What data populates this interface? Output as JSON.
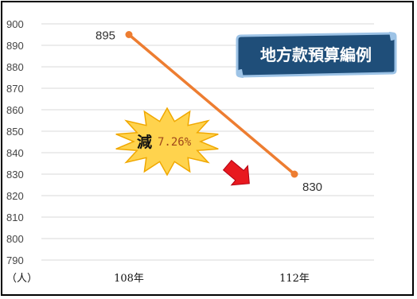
{
  "chart_data": {
    "type": "line",
    "categories": [
      "108年",
      "112年"
    ],
    "series": [
      {
        "values": [
          895,
          830
        ],
        "color": "#ed7d31"
      }
    ],
    "ylim": [
      790,
      900
    ],
    "yticks": [
      790,
      800,
      810,
      820,
      830,
      840,
      850,
      860,
      870,
      880,
      890,
      900
    ],
    "y_unit_label": "（人）",
    "data_labels": [
      "895",
      "830"
    ],
    "grid": true,
    "title_banner": "地方款預算編例",
    "annotation": {
      "main": "減",
      "percent": "7.26%"
    }
  },
  "colors": {
    "banner_fill": "#1f4e79",
    "banner_border": "#9dc3e6",
    "burst_fill": "#ffd34d",
    "arrow_fill": "#e8191f",
    "grid": "#d9d9d9"
  }
}
